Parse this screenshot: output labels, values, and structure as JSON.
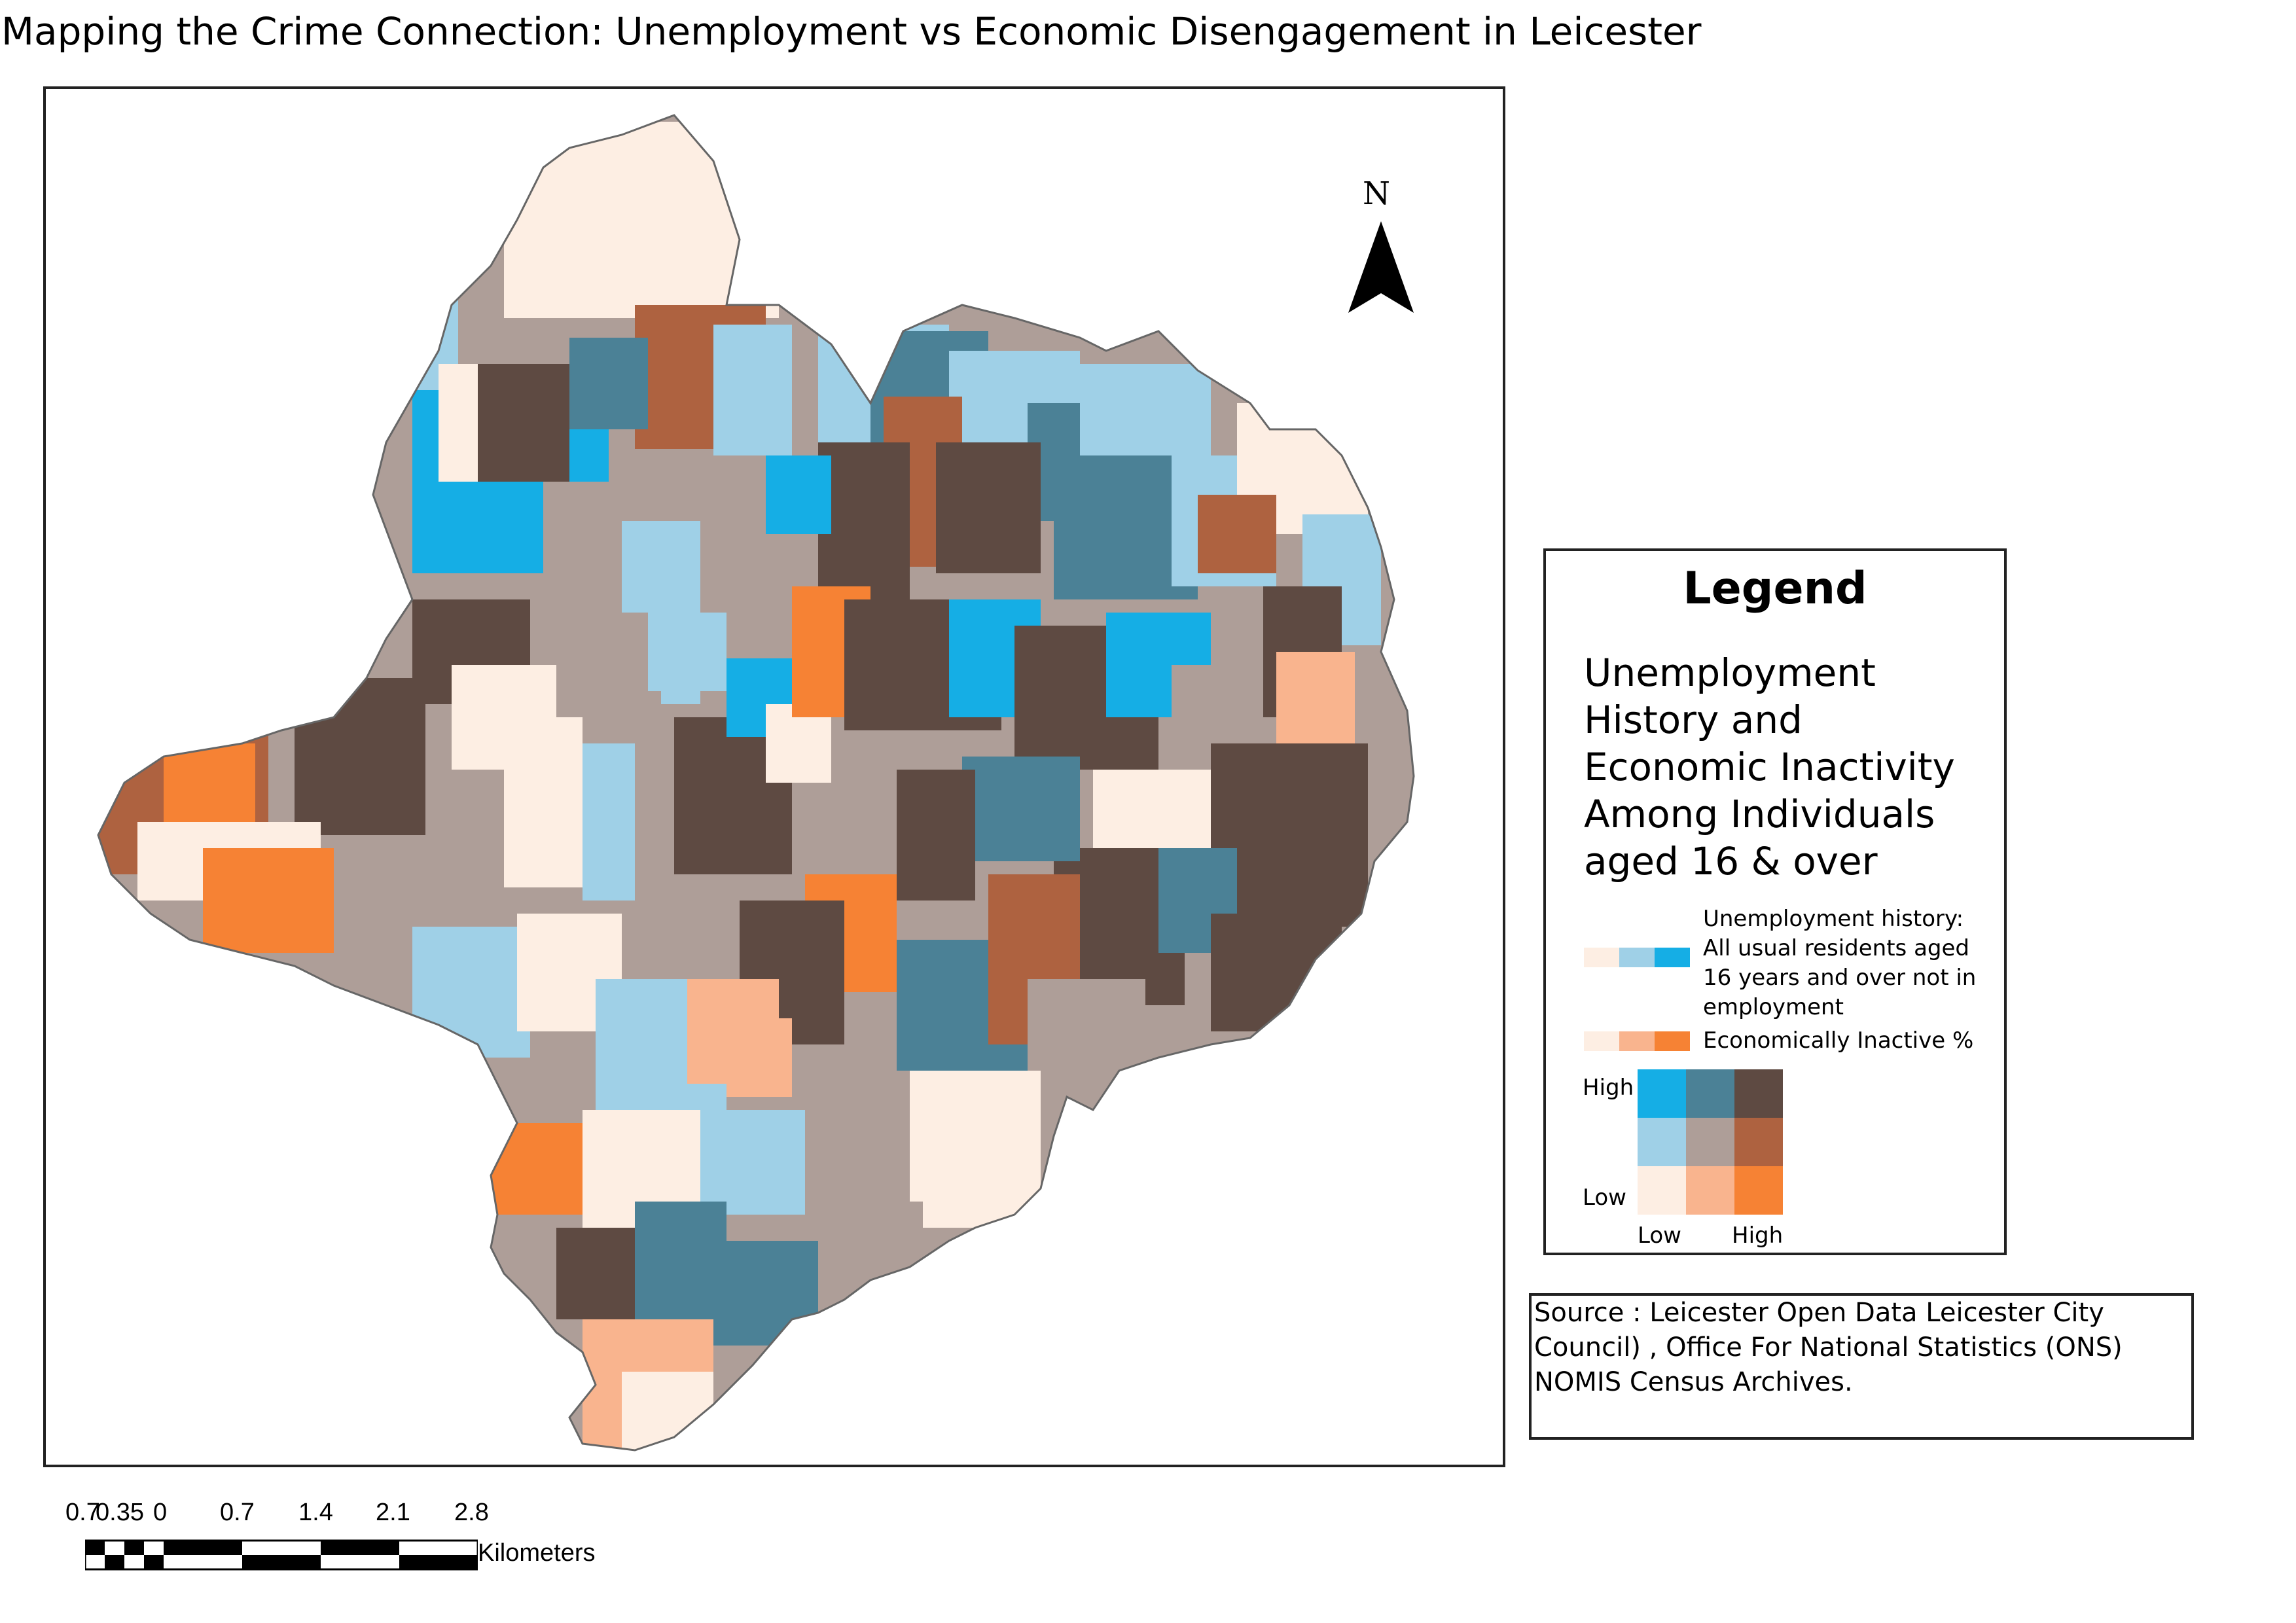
{
  "title": "Mapping the Crime Connection: Unemployment vs Economic Disengagement in Leicester",
  "north_arrow": {
    "label": "N"
  },
  "legend": {
    "title": "Legend",
    "subtitle": "Unemployment History and Economic Inactivity Among Individuals aged 16 & over",
    "unemployment_label": "Unemployment history: All usual residents aged 16 years and over not in employment",
    "inactive_label": "Economically Inactive %",
    "axis_high": "High",
    "axis_low": "Low",
    "x_low": "Low",
    "x_high": "High",
    "unemployment_colors": [
      "#fdeee3",
      "#9fd0e7",
      "#15aee5"
    ],
    "inactive_colors": [
      "#fdeee3",
      "#f9b48e",
      "#f68234"
    ],
    "grid_colors": [
      [
        "#15aee5",
        "#4b8196",
        "#5e4a42"
      ],
      [
        "#9fd0e7",
        "#ae9e98",
        "#ae6240"
      ],
      [
        "#fdeee3",
        "#f9b48e",
        "#f68234"
      ]
    ]
  },
  "source": {
    "text": "Source : Leicester Open Data Leicester City Council) , Office For National Statistics (ONS) NOMIS Census Archives."
  },
  "scalebar": {
    "ticks": [
      "0.7",
      "0.35",
      "0",
      "0.7",
      "1.4",
      "2.1",
      "2.8"
    ],
    "units": "Kilometers"
  }
}
